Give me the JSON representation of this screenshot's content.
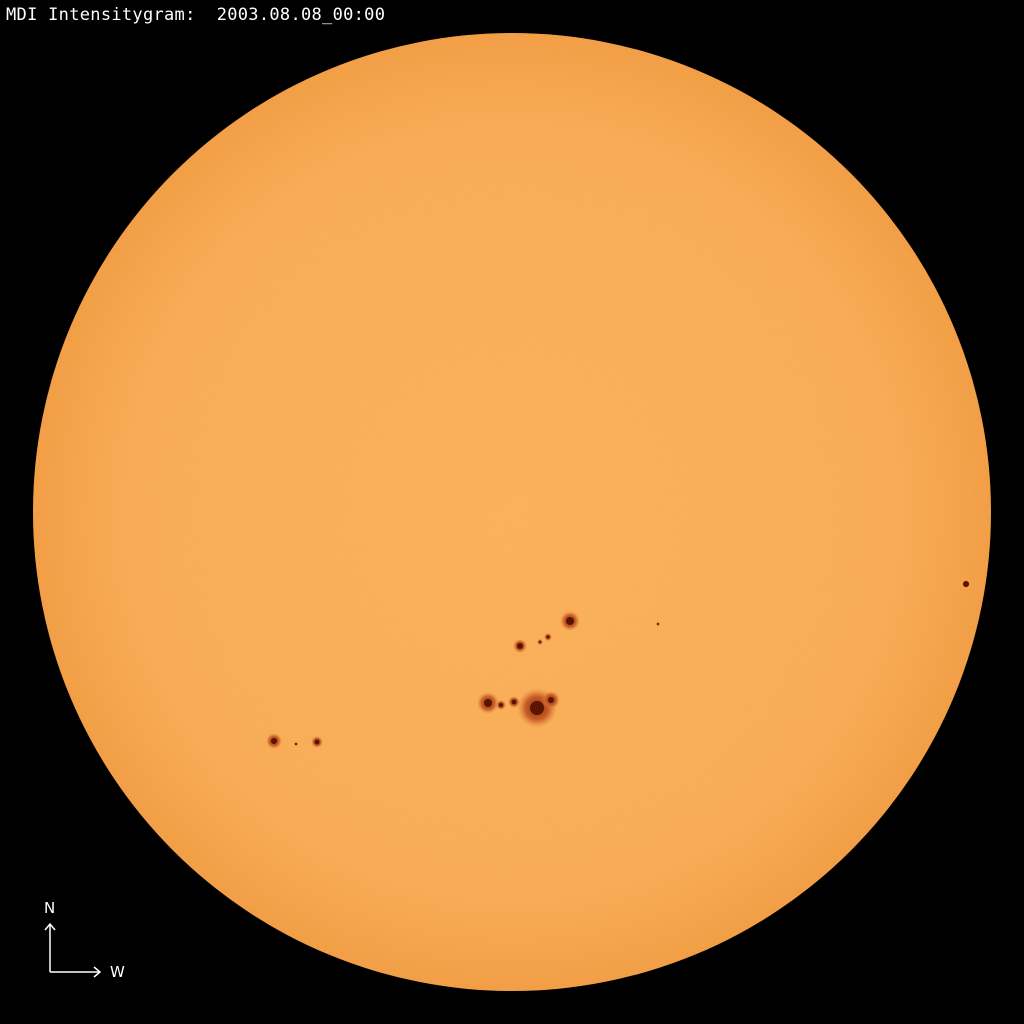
{
  "title": "MDI Intensitygram:  2003.08.08_00:00",
  "orientation": {
    "north_label": "N",
    "west_label": "W"
  },
  "colors": {
    "background": "#000000",
    "photosphere": "#F9AA52",
    "limb": "#F19A3E",
    "umbra": "#5A1400",
    "penumbra": "#C8602A"
  }
}
